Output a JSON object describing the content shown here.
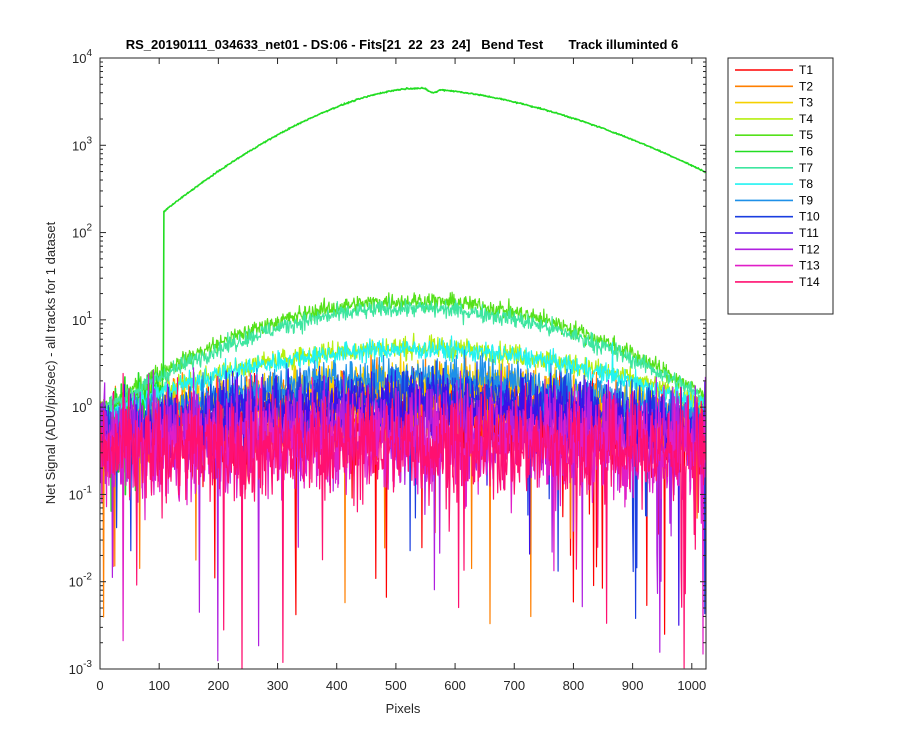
{
  "chart_data": {
    "type": "line",
    "title": "RS_20190111_034633_net01 - DS:06 - Fits[21  22  23  24]   Bend Test       Track illuminted 6",
    "xlabel": "Pixels",
    "ylabel": "Net Signal (ADU/pix/sec) - all tracks for 1 dataset",
    "xlim": [
      0,
      1024
    ],
    "ylim": [
      0.001,
      10000
    ],
    "yscale": "log",
    "xticks": [
      0,
      100,
      200,
      300,
      400,
      500,
      600,
      700,
      800,
      900,
      1000
    ],
    "xtick_labels": [
      "0",
      "100",
      "200",
      "300",
      "400",
      "500",
      "600",
      "700",
      "800",
      "900",
      "1000"
    ],
    "yticks": [
      0.001,
      0.01,
      0.1,
      1,
      10,
      100,
      1000,
      10000
    ],
    "ytick_labels": [
      {
        "base": "10",
        "exp": "-3"
      },
      {
        "base": "10",
        "exp": "-2"
      },
      {
        "base": "10",
        "exp": "-1"
      },
      {
        "base": "10",
        "exp": "0"
      },
      {
        "base": "10",
        "exp": "1"
      },
      {
        "base": "10",
        "exp": "2"
      },
      {
        "base": "10",
        "exp": "3"
      },
      {
        "base": "10",
        "exp": "4"
      }
    ],
    "grid": false,
    "legend_position": "outside-right",
    "series": [
      {
        "name": "T1",
        "color": "#ff0000",
        "level_peak": 0.7,
        "level_edge": 0.4,
        "noise": 0.25
      },
      {
        "name": "T2",
        "color": "#ff7f00",
        "level_peak": 1.1,
        "level_edge": 0.45,
        "noise": 0.22
      },
      {
        "name": "T3",
        "color": "#f5d000",
        "level_peak": 2.0,
        "level_edge": 0.6,
        "noise": 0.12
      },
      {
        "name": "T4",
        "color": "#b5ef10",
        "level_peak": 4.8,
        "level_edge": 0.9,
        "noise": 0.06
      },
      {
        "name": "T5",
        "color": "#55e11a",
        "level_peak": 16.5,
        "level_edge": 1.0,
        "noise": 0.05
      },
      {
        "name": "T6",
        "color": "#22dd22",
        "level_peak": 4500,
        "level_edge": 0.8,
        "noise": 0.02,
        "illuminated": true,
        "x_on": 108,
        "y_on": 175,
        "y_end": 490
      },
      {
        "name": "T7",
        "color": "#3ee6a0",
        "level_peak": 13.5,
        "level_edge": 0.95,
        "noise": 0.05
      },
      {
        "name": "T8",
        "color": "#22f2f2",
        "level_peak": 4.6,
        "level_edge": 0.85,
        "noise": 0.06
      },
      {
        "name": "T9",
        "color": "#1e90e8",
        "level_peak": 2.2,
        "level_edge": 0.6,
        "noise": 0.12
      },
      {
        "name": "T10",
        "color": "#1a3ee0",
        "level_peak": 1.4,
        "level_edge": 0.5,
        "noise": 0.16
      },
      {
        "name": "T11",
        "color": "#3a10e8",
        "level_peak": 1.0,
        "level_edge": 0.45,
        "noise": 0.2
      },
      {
        "name": "T12",
        "color": "#b020e0",
        "level_peak": 0.55,
        "level_edge": 0.4,
        "noise": 0.28
      },
      {
        "name": "T13",
        "color": "#e01ec8",
        "level_peak": 0.4,
        "level_edge": 0.32,
        "noise": 0.3
      },
      {
        "name": "T14",
        "color": "#ff1070",
        "level_peak": 0.35,
        "level_edge": 0.3,
        "noise": 0.3
      }
    ]
  }
}
